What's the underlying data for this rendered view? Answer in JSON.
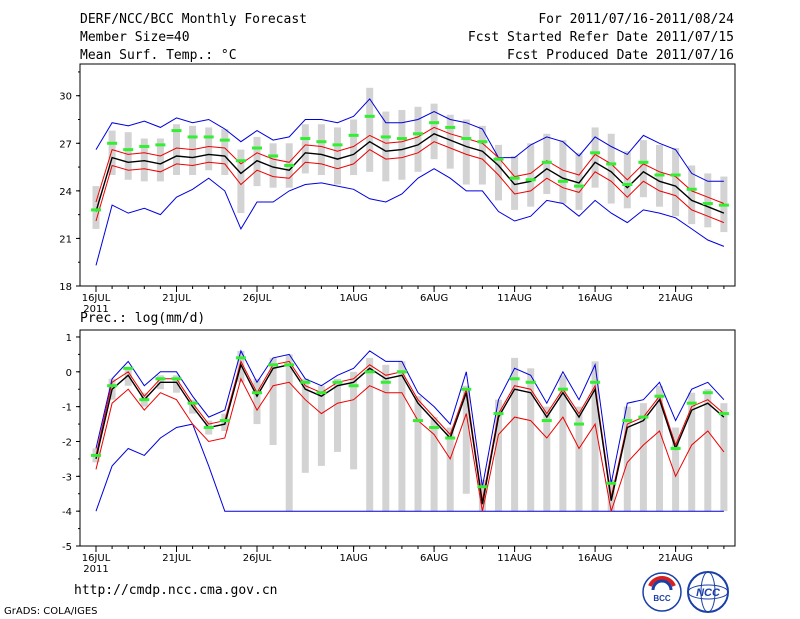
{
  "header": {
    "title": "DERF/NCC/BCC Monthly Forecast",
    "member_size": "Member Size=40",
    "variable": "Mean Surf. Temp.: °C",
    "period": "For 2011/07/16-2011/08/24",
    "start_date": "Fcst Started Refer Date 2011/07/15",
    "produced_date": "Fcst Produced Date 2011/07/16"
  },
  "footer": {
    "url": "http://cmdp.ncc.cma.gov.cn",
    "credit": "GrADS: COLA/IGES",
    "logo_bcc": "BCC",
    "logo_ncc": "NCC"
  },
  "colors": {
    "bar": "#d3d3d3",
    "blue": "#0000dd",
    "red": "#ee0000",
    "mean": "#000000",
    "green": "#33ee33"
  },
  "chart_data": [
    {
      "type": "line",
      "title": "Mean Surf. Temp.: °C",
      "x_tick_labels": [
        "16JUL",
        "21JUL",
        "26JUL",
        "1AUG",
        "6AUG",
        "11AUG",
        "16AUG",
        "21AUG"
      ],
      "x_sub_label": "2011",
      "ylim": [
        18,
        32
      ],
      "y_ticks": [
        18,
        21,
        24,
        27,
        30
      ],
      "series": [
        {
          "name": "mean",
          "values": [
            22.7,
            26.1,
            25.8,
            25.9,
            25.7,
            26.2,
            26.1,
            26.3,
            26.2,
            25.1,
            25.9,
            25.5,
            25.3,
            26.4,
            26.3,
            26.0,
            26.3,
            27.1,
            26.5,
            26.6,
            26.9,
            27.6,
            27.2,
            26.8,
            26.5,
            25.6,
            24.4,
            24.6,
            25.4,
            24.8,
            24.5,
            25.8,
            25.2,
            24.2,
            25.2,
            24.6,
            24.3,
            23.4,
            23.0,
            22.6
          ]
        },
        {
          "name": "upper-red",
          "values": [
            23.3,
            26.6,
            26.3,
            26.4,
            26.2,
            26.7,
            26.6,
            26.8,
            26.7,
            25.7,
            26.4,
            26.0,
            25.8,
            26.9,
            26.8,
            26.5,
            26.8,
            27.5,
            27.0,
            27.1,
            27.4,
            28.0,
            27.6,
            27.3,
            27.0,
            26.1,
            24.9,
            25.1,
            25.9,
            25.3,
            25.0,
            26.3,
            25.7,
            24.7,
            25.7,
            25.2,
            24.9,
            24.0,
            23.6,
            23.2
          ]
        },
        {
          "name": "lower-red",
          "values": [
            22.1,
            25.6,
            25.3,
            25.4,
            25.2,
            25.7,
            25.6,
            25.8,
            25.7,
            24.4,
            25.3,
            24.9,
            24.8,
            25.8,
            25.7,
            25.4,
            25.7,
            26.6,
            26.0,
            26.1,
            26.4,
            27.1,
            26.7,
            26.3,
            26.0,
            25.0,
            23.8,
            24.0,
            24.8,
            24.2,
            23.9,
            25.2,
            24.6,
            23.6,
            24.6,
            24.0,
            23.7,
            22.8,
            22.4,
            22.0
          ]
        },
        {
          "name": "max-blue",
          "values": [
            26.6,
            28.3,
            28.1,
            28.4,
            28.0,
            28.6,
            28.3,
            28.5,
            27.9,
            27.1,
            27.8,
            27.2,
            27.4,
            28.5,
            28.5,
            28.3,
            28.7,
            29.8,
            28.3,
            28.3,
            28.5,
            29.0,
            28.5,
            28.3,
            27.9,
            26.1,
            26.1,
            26.9,
            27.4,
            27.1,
            26.2,
            27.4,
            26.8,
            26.3,
            27.5,
            27.0,
            26.6,
            25.1,
            24.6,
            24.6
          ]
        },
        {
          "name": "min-blue",
          "values": [
            19.3,
            23.1,
            22.6,
            22.9,
            22.5,
            23.6,
            24.1,
            24.8,
            24.0,
            21.6,
            23.3,
            23.3,
            24.0,
            24.4,
            24.5,
            24.3,
            24.1,
            23.5,
            23.3,
            23.8,
            24.8,
            25.4,
            24.8,
            24.0,
            24.0,
            22.7,
            22.1,
            22.4,
            23.4,
            23.2,
            22.4,
            23.4,
            22.6,
            22.0,
            22.8,
            22.6,
            22.3,
            21.6,
            20.9,
            20.5
          ]
        },
        {
          "name": "observed-green",
          "values": [
            22.8,
            27.0,
            26.6,
            26.8,
            26.9,
            27.8,
            27.4,
            27.4,
            27.2,
            25.9,
            26.7,
            26.2,
            25.6,
            27.3,
            27.1,
            26.9,
            27.5,
            28.7,
            27.4,
            27.3,
            27.6,
            28.3,
            28.0,
            27.3,
            27.1,
            26.0,
            24.8,
            24.7,
            25.8,
            24.6,
            24.3,
            26.4,
            25.7,
            24.4,
            25.8,
            25.0,
            25.0,
            24.1,
            23.2,
            23.1
          ]
        },
        {
          "name": "bar-top",
          "values": [
            24.3,
            27.8,
            27.7,
            27.3,
            27.3,
            28.2,
            28.1,
            28.0,
            27.9,
            26.6,
            27.4,
            27.0,
            27.0,
            28.2,
            28.2,
            28.0,
            28.5,
            30.5,
            29.0,
            29.1,
            29.3,
            29.5,
            28.8,
            28.5,
            28.1,
            26.9,
            26.2,
            27.0,
            27.6,
            27.2,
            26.4,
            28.0,
            27.6,
            26.5,
            27.2,
            26.9,
            26.7,
            25.6,
            25.1,
            24.9
          ]
        },
        {
          "name": "bar-bottom",
          "values": [
            21.6,
            25.0,
            24.7,
            24.6,
            24.6,
            25.0,
            25.0,
            25.3,
            25.0,
            22.6,
            24.3,
            24.2,
            24.2,
            25.1,
            25.0,
            24.4,
            25.0,
            25.2,
            24.6,
            24.7,
            25.2,
            26.0,
            25.4,
            24.4,
            24.4,
            23.4,
            22.8,
            23.0,
            23.8,
            23.2,
            22.8,
            24.2,
            23.2,
            22.9,
            23.6,
            23.0,
            22.4,
            21.9,
            21.7,
            21.4
          ]
        }
      ]
    },
    {
      "type": "line",
      "title": "Prec.: log(mm/d)",
      "x_tick_labels": [
        "16JUL",
        "21JUL",
        "26JUL",
        "1AUG",
        "6AUG",
        "11AUG",
        "16AUG",
        "21AUG"
      ],
      "x_sub_label": "2011",
      "ylim": [
        -5,
        1.2
      ],
      "y_ticks": [
        -5,
        -4,
        -3,
        -2,
        -1,
        0,
        1
      ],
      "series": [
        {
          "name": "mean",
          "values": [
            -2.5,
            -0.5,
            -0.1,
            -0.8,
            -0.3,
            -0.3,
            -1.0,
            -1.6,
            -1.5,
            0.2,
            -0.7,
            0.1,
            0.2,
            -0.5,
            -0.7,
            -0.4,
            -0.3,
            0.1,
            -0.2,
            -0.1,
            -0.9,
            -1.4,
            -1.9,
            -0.6,
            -3.8,
            -1.3,
            -0.5,
            -0.6,
            -1.3,
            -0.6,
            -1.3,
            -0.5,
            -3.7,
            -1.6,
            -1.4,
            -0.8,
            -2.2,
            -1.1,
            -0.9,
            -1.3
          ]
        },
        {
          "name": "upper-red",
          "values": [
            -2.4,
            -0.3,
            0.0,
            -0.7,
            -0.2,
            -0.2,
            -0.9,
            -1.5,
            -1.4,
            0.3,
            -0.6,
            0.2,
            0.3,
            -0.4,
            -0.6,
            -0.3,
            -0.2,
            0.2,
            -0.1,
            0.0,
            -0.8,
            -1.3,
            -1.8,
            -0.5,
            -3.7,
            -1.2,
            -0.4,
            -0.5,
            -1.2,
            -0.5,
            -1.2,
            -0.4,
            -3.6,
            -1.5,
            -1.3,
            -0.7,
            -2.1,
            -1.0,
            -0.8,
            -1.2
          ]
        },
        {
          "name": "lower-red",
          "values": [
            -2.8,
            -0.9,
            -0.5,
            -1.1,
            -0.6,
            -0.8,
            -1.5,
            -2.0,
            -1.9,
            -0.2,
            -1.1,
            -0.4,
            -0.3,
            -0.8,
            -1.2,
            -0.9,
            -0.8,
            -0.4,
            -0.6,
            -0.6,
            -1.4,
            -1.8,
            -2.5,
            -1.2,
            -4.0,
            -1.8,
            -1.3,
            -1.4,
            -1.9,
            -1.3,
            -2.2,
            -1.5,
            -4.0,
            -2.6,
            -2.1,
            -1.7,
            -3.0,
            -2.1,
            -1.7,
            -2.3
          ]
        },
        {
          "name": "max-blue",
          "values": [
            -2.2,
            -0.2,
            0.3,
            -0.4,
            0.0,
            0.0,
            -0.7,
            -1.3,
            -1.1,
            0.6,
            -0.3,
            0.4,
            0.5,
            -0.2,
            -0.4,
            -0.1,
            0.1,
            0.6,
            0.3,
            0.3,
            -0.6,
            -1.0,
            -1.5,
            0.0,
            -3.3,
            -0.8,
            0.1,
            -0.1,
            -0.9,
            0.0,
            -0.8,
            0.2,
            -3.2,
            -0.9,
            -0.8,
            -0.3,
            -1.4,
            -0.5,
            -0.3,
            -0.8
          ]
        },
        {
          "name": "min-blue",
          "values": [
            -4.0,
            -2.7,
            -2.2,
            -2.4,
            -1.9,
            -1.6,
            -1.5,
            -2.7,
            -4.0,
            -4.0,
            -4.0,
            -4.0,
            -4.0,
            -4.0,
            -4.0,
            -4.0,
            -4.0,
            -4.0,
            -4.0,
            -4.0,
            -4.0,
            -4.0,
            -4.0,
            -4.0,
            -4.0,
            -4.0,
            -4.0,
            -4.0,
            -4.0,
            -4.0,
            -4.0,
            -4.0,
            -4.0,
            -4.0,
            -4.0,
            -4.0,
            -4.0,
            -4.0,
            -4.0,
            -4.0
          ]
        },
        {
          "name": "observed-green",
          "values": [
            -2.4,
            -0.4,
            0.1,
            -0.8,
            -0.2,
            -0.2,
            -0.9,
            -1.6,
            -1.4,
            0.4,
            -0.6,
            0.2,
            0.2,
            -0.3,
            -0.6,
            -0.3,
            -0.4,
            0.0,
            -0.3,
            0.0,
            -1.4,
            -1.6,
            -1.9,
            -0.5,
            -3.3,
            -1.2,
            -0.2,
            -0.3,
            -1.4,
            -0.5,
            -1.5,
            -0.3,
            -3.2,
            -1.4,
            -1.3,
            -0.7,
            -2.2,
            -0.9,
            -0.6,
            -1.2
          ]
        },
        {
          "name": "bar-top",
          "values": [
            -2.2,
            -0.2,
            0.1,
            -0.6,
            -0.1,
            -0.1,
            -0.8,
            -1.4,
            -1.2,
            0.6,
            -0.2,
            0.4,
            0.5,
            -0.2,
            -0.4,
            -0.2,
            0.0,
            0.4,
            0.2,
            0.3,
            -0.7,
            -1.3,
            -1.6,
            -0.4,
            -3.1,
            -0.8,
            0.4,
            0.1,
            -1.0,
            -0.1,
            -1.0,
            0.3,
            -3.1,
            -1.0,
            -0.9,
            -0.4,
            -1.6,
            -0.6,
            -0.5,
            -0.9
          ]
        },
        {
          "name": "bar-bottom",
          "values": [
            -2.6,
            -0.8,
            -0.4,
            -1.0,
            -0.5,
            -0.6,
            -1.2,
            -1.8,
            -1.7,
            -0.3,
            -1.5,
            -2.1,
            -4.0,
            -2.9,
            -2.7,
            -2.3,
            -2.8,
            -4.0,
            -4.0,
            -4.0,
            -4.0,
            -4.0,
            -4.0,
            -3.5,
            -4.0,
            -4.0,
            -4.0,
            -4.0,
            -4.0,
            -4.0,
            -4.0,
            -4.0,
            -4.0,
            -4.0,
            -4.0,
            -4.0,
            -4.0,
            -4.0,
            -4.0,
            -4.0
          ]
        }
      ]
    }
  ]
}
